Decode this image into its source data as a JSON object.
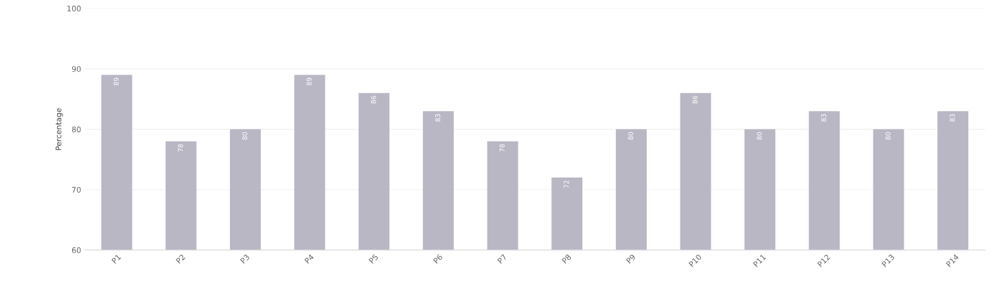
{
  "chart_data": {
    "type": "bar",
    "ylabel": "Percentage",
    "categories": [
      "P1",
      "P2",
      "P3",
      "P4",
      "P5",
      "P6",
      "P7",
      "P8",
      "P9",
      "P10",
      "P11",
      "P12",
      "P13",
      "P14"
    ],
    "values": [
      89,
      78,
      80,
      89,
      86,
      83,
      78,
      72,
      80,
      86,
      80,
      83,
      80,
      83
    ],
    "color": "#b9b7c4",
    "ylim": [
      60,
      100
    ],
    "yticks": [
      60,
      70,
      80,
      90,
      100
    ],
    "grid": "y",
    "data_labels": true
  }
}
